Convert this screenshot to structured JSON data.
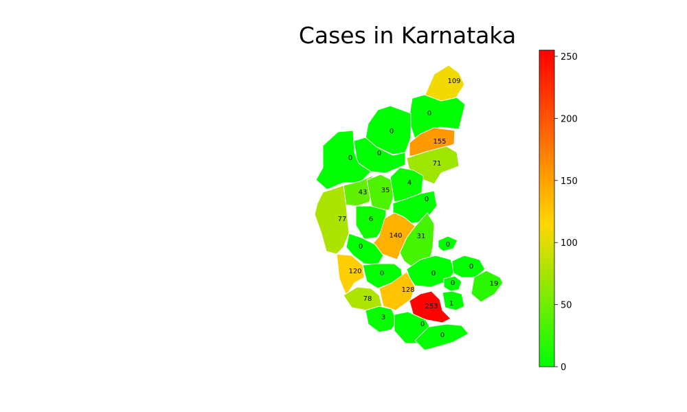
{
  "chart_data": {
    "type": "choropleth",
    "title": "Cases in Karnataka",
    "colorbar": {
      "min": 0,
      "max": 255,
      "ticks": [
        "0",
        "50",
        "100",
        "150",
        "200",
        "250"
      ],
      "colors": [
        "#00ff00",
        "#ffd700",
        "#ff0000"
      ]
    },
    "district_values": [
      109,
      0,
      0,
      155,
      0,
      71,
      0,
      43,
      35,
      4,
      0,
      77,
      6,
      140,
      31,
      0,
      0,
      120,
      0,
      0,
      0,
      19,
      128,
      0,
      78,
      1,
      253,
      3,
      0,
      0
    ]
  }
}
